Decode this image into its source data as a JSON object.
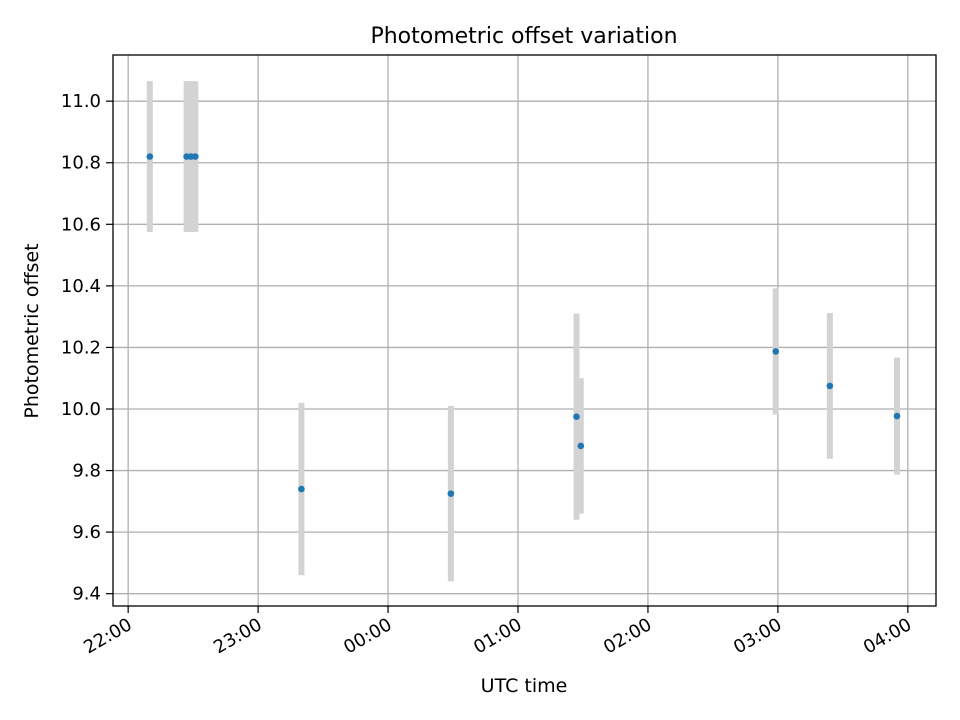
{
  "chart_data": {
    "type": "scatter",
    "title": "Photometric offset variation",
    "xlabel": "UTC time",
    "ylabel": "Photometric offset",
    "grid": true,
    "x_ticks": [
      "22:00",
      "23:00",
      "00:00",
      "01:00",
      "02:00",
      "03:00",
      "04:00"
    ],
    "y_ticks": [
      "9.4",
      "9.6",
      "9.8",
      "10.0",
      "10.2",
      "10.4",
      "10.6",
      "10.8",
      "11.0"
    ],
    "xlim": [
      "21:53",
      "04:13"
    ],
    "ylim": [
      9.36,
      11.15
    ],
    "colors": {
      "point": "#1f77b4",
      "errorbar": "#d3d3d3",
      "grid": "#b0b0b0"
    },
    "points": [
      {
        "time": "22:10",
        "y": 10.82,
        "yerr": 0.245
      },
      {
        "time": "22:27",
        "y": 10.82,
        "yerr": 0.245
      },
      {
        "time": "22:29",
        "y": 10.82,
        "yerr": 0.245
      },
      {
        "time": "22:31",
        "y": 10.82,
        "yerr": 0.245
      },
      {
        "time": "23:20",
        "y": 9.74,
        "yerr": 0.28
      },
      {
        "time": "00:29",
        "y": 9.725,
        "yerr": 0.285
      },
      {
        "time": "01:27",
        "y": 9.975,
        "yerr": 0.335
      },
      {
        "time": "01:29",
        "y": 9.88,
        "yerr": 0.22
      },
      {
        "time": "02:59",
        "y": 10.187,
        "yerr": 0.205
      },
      {
        "time": "03:24",
        "y": 10.075,
        "yerr": 0.237
      },
      {
        "time": "03:55",
        "y": 9.977,
        "yerr": 0.19
      }
    ]
  }
}
